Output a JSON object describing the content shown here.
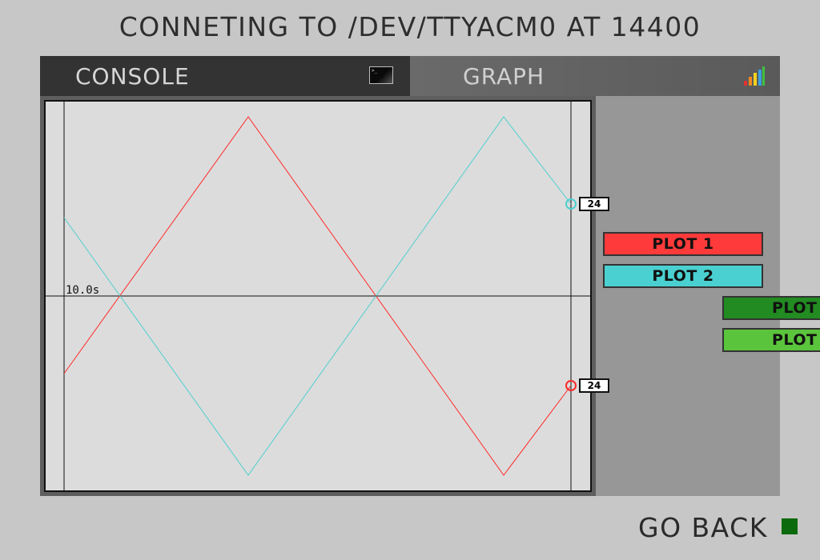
{
  "header": {
    "title": "CONNETING TO /DEV/TTYACM0 AT 14400"
  },
  "tabs": [
    {
      "label": "CONSOLE",
      "icon": "terminal-icon"
    },
    {
      "label": "GRAPH",
      "icon": "signal-bars-icon"
    }
  ],
  "graph": {
    "time_label": "10.0s",
    "series": [
      {
        "color": "#ff2a2a",
        "current_value": "24"
      },
      {
        "color": "#4fcfcf",
        "current_value": "24"
      }
    ]
  },
  "plot_buttons": [
    {
      "label": "PLOT 1",
      "color": "#ff3a3a"
    },
    {
      "label": "PLOT 2",
      "color": "#4ad0d0"
    },
    {
      "label": "PLOT",
      "color": "#228b22"
    },
    {
      "label": "PLOT",
      "color": "#5ac43c"
    }
  ],
  "footer": {
    "go_back_label": "GO BACK",
    "indicator_color": "#0b6a0b"
  }
}
